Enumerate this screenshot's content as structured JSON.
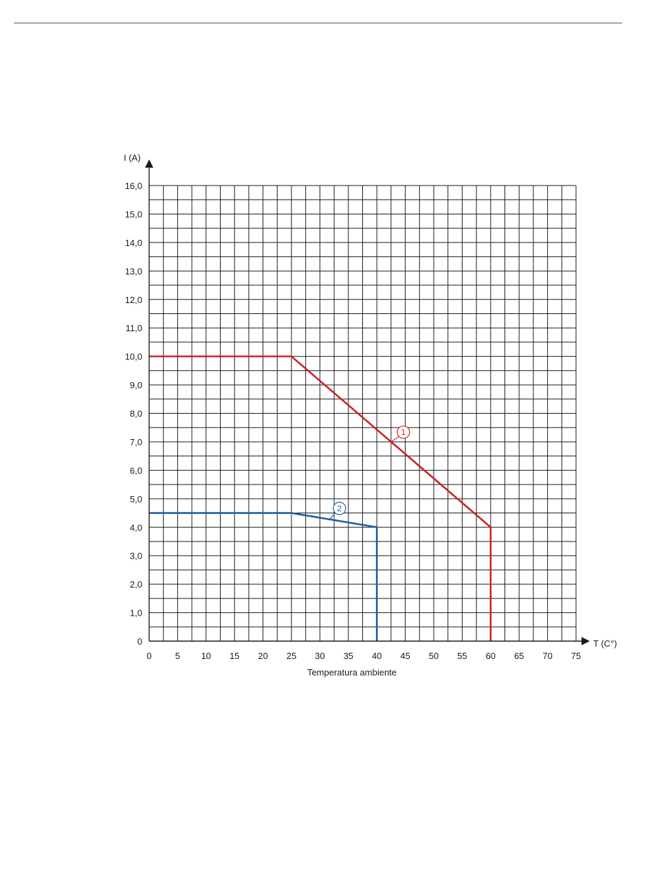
{
  "chart_data": {
    "type": "line",
    "xlabel": "Temperatura ambiente",
    "x_axis_unit_label": "T (C°)",
    "y_axis_unit_label": "I (A)",
    "xlim": [
      0,
      75
    ],
    "ylim": [
      0,
      16
    ],
    "x_ticks": [
      0,
      5,
      10,
      15,
      20,
      25,
      30,
      35,
      40,
      45,
      50,
      55,
      60,
      65,
      70,
      75
    ],
    "x_tick_labels": [
      "0",
      "5",
      "10",
      "15",
      "20",
      "25",
      "30",
      "35",
      "40",
      "45",
      "50",
      "55",
      "60",
      "65",
      "70",
      "75"
    ],
    "y_ticks": [
      0,
      1,
      2,
      3,
      4,
      5,
      6,
      7,
      8,
      9,
      10,
      11,
      12,
      13,
      14,
      15,
      16
    ],
    "y_tick_labels": [
      "0",
      "1,0",
      "2,0",
      "3,0",
      "4,0",
      "5,0",
      "6,0",
      "7,0",
      "8,0",
      "9,0",
      "10,0",
      "11,0",
      "12,0",
      "13,0",
      "14,0",
      "15,0",
      "16,0"
    ],
    "grid": true,
    "grid_minor_x_step": 2.5,
    "grid_minor_y_step": 0.5,
    "series": [
      {
        "callout": "1",
        "color": "#cc2229",
        "x": [
          0,
          25,
          60,
          60
        ],
        "y": [
          10,
          10,
          4,
          0
        ]
      },
      {
        "callout": "2",
        "color": "#1f5fa0",
        "x": [
          0,
          25,
          40,
          40
        ],
        "y": [
          4.5,
          4.5,
          4,
          0
        ]
      }
    ]
  }
}
